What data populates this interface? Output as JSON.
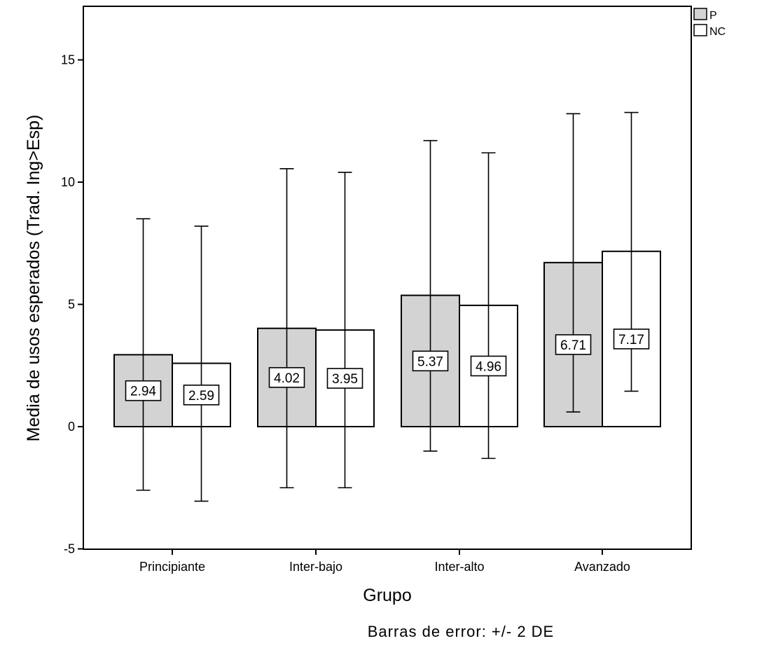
{
  "chart_data": {
    "type": "bar",
    "categories": [
      "Principiante",
      "Inter-bajo",
      "Inter-alto",
      "Avanzado"
    ],
    "series": [
      {
        "name": "P",
        "values": [
          2.94,
          4.02,
          5.37,
          6.71
        ],
        "value_labels": [
          "2.94",
          "4.02",
          "5.37",
          "6.71"
        ],
        "error_low": [
          -2.6,
          -2.5,
          -1.0,
          0.6
        ],
        "error_high": [
          8.5,
          10.55,
          11.7,
          12.8
        ],
        "color": "#d3d3d3"
      },
      {
        "name": "NC",
        "values": [
          2.59,
          3.95,
          4.96,
          7.17
        ],
        "value_labels": [
          "2.59",
          "3.95",
          "4.96",
          "7.17"
        ],
        "error_low": [
          -3.05,
          -2.5,
          -1.3,
          1.45
        ],
        "error_high": [
          8.2,
          10.4,
          11.2,
          12.85
        ],
        "color": "#ffffff"
      }
    ],
    "xlabel": "Grupo",
    "ylabel": "Media de usos esperados (Trad. Ing>Esp)",
    "ylim": [
      -5,
      17
    ],
    "yticks": [
      -5,
      0,
      5,
      10,
      15
    ],
    "ytick_labels": [
      "-5",
      "0",
      "5",
      "10",
      "15"
    ],
    "grid": false,
    "legend_position": "top-right",
    "footnote": "Barras de error: +/- 2 DE"
  }
}
